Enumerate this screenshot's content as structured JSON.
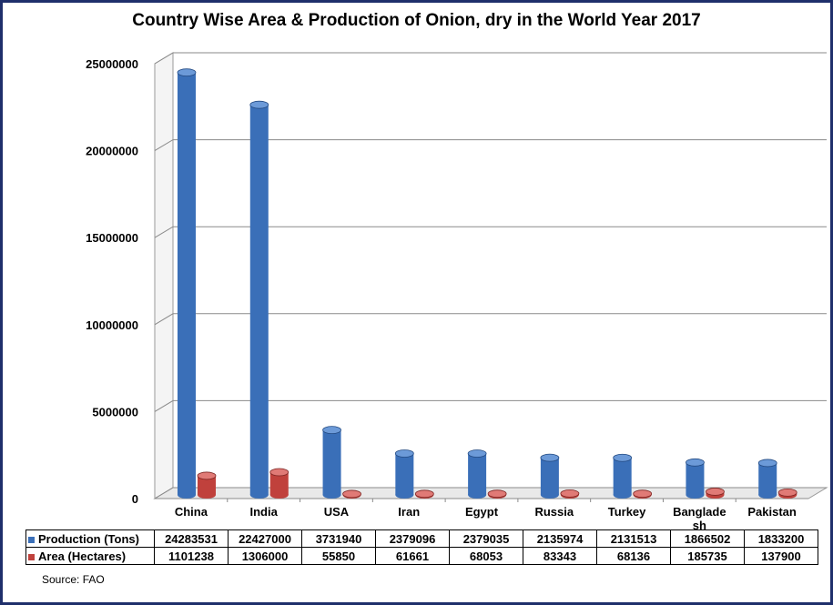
{
  "chart_data": {
    "type": "bar",
    "title": "Country Wise Area & Production of Onion, dry in the World Year 2017",
    "categories": [
      "China",
      "India",
      "USA",
      "Iran",
      "Egypt",
      "Russia",
      "Turkey",
      "Banglade sh",
      "Pakistan"
    ],
    "series": [
      {
        "name": "Production (Tons)",
        "color": "#3a6fb8",
        "values": [
          24283531,
          22427000,
          3731940,
          2379096,
          2379035,
          2135974,
          2131513,
          1866502,
          1833200
        ]
      },
      {
        "name": "Area (Hectares)",
        "color": "#c0413c",
        "values": [
          1101238,
          1306000,
          55850,
          61661,
          68053,
          83343,
          68136,
          185735,
          137900
        ]
      }
    ],
    "yticks": [
      "0",
      "5000000",
      "10000000",
      "15000000",
      "20000000",
      "25000000"
    ],
    "ylim": [
      0,
      25000000
    ],
    "grid": true,
    "legend": "data-table",
    "source": "Source: FAO"
  }
}
